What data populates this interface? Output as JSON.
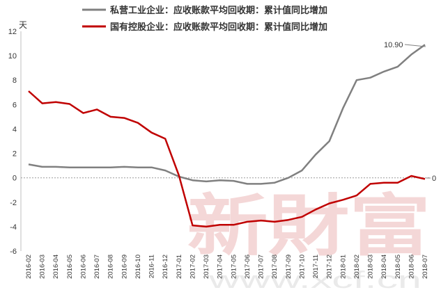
{
  "chart_data": {
    "type": "line",
    "unit_label": "天",
    "ylim": [
      -6,
      12
    ],
    "yticks": [
      -6,
      -4,
      -2,
      0,
      2,
      4,
      6,
      8,
      10,
      12
    ],
    "grid": false,
    "legend_position": "top-center",
    "categories": [
      "2016-02",
      "2016-03",
      "2016-04",
      "2016-05",
      "2016-06",
      "2016-07",
      "2016-08",
      "2016-09",
      "2016-10",
      "2016-11",
      "2016-12",
      "2017-01",
      "2017-02",
      "2017-03",
      "2017-04",
      "2017-05",
      "2017-06",
      "2017-07",
      "2017-08",
      "2017-09",
      "2017-10",
      "2017-11",
      "2017-12",
      "2018-01",
      "2018-02",
      "2018-03",
      "2018-04",
      "2018-05",
      "2018-06",
      "2018-07"
    ],
    "series": [
      {
        "name": "私营工业企业：应收账款平均回收期：累计值同比增加",
        "color": "#808080",
        "values": [
          1.1,
          0.9,
          0.9,
          0.85,
          0.85,
          0.85,
          0.85,
          0.9,
          0.85,
          0.85,
          0.6,
          0.1,
          -0.2,
          -0.3,
          -0.2,
          -0.25,
          -0.5,
          -0.5,
          -0.4,
          0.0,
          0.6,
          1.9,
          3.0,
          5.7,
          8.0,
          8.2,
          8.7,
          9.1,
          10.1,
          10.9
        ]
      },
      {
        "name": "国有控股企业：应收账款平均回收期：累计值同比增加",
        "color": "#c00000",
        "values": [
          7.1,
          6.1,
          6.2,
          6.05,
          5.3,
          5.6,
          5.0,
          4.9,
          4.5,
          3.7,
          3.2,
          0.2,
          -3.9,
          -4.0,
          -3.85,
          -3.85,
          -3.6,
          -3.5,
          -3.6,
          -3.45,
          -3.2,
          -2.6,
          -2.1,
          -1.8,
          -1.45,
          -0.5,
          -0.4,
          -0.4,
          0.15,
          -0.1
        ]
      }
    ],
    "annotations": [
      {
        "text": "10.90",
        "series": 0,
        "category": "2018-07"
      },
      {
        "text": "0",
        "series": 1,
        "category": "2018-07"
      }
    ],
    "watermark": {
      "text": "新財富",
      "url": "www.xcf.cn"
    }
  }
}
